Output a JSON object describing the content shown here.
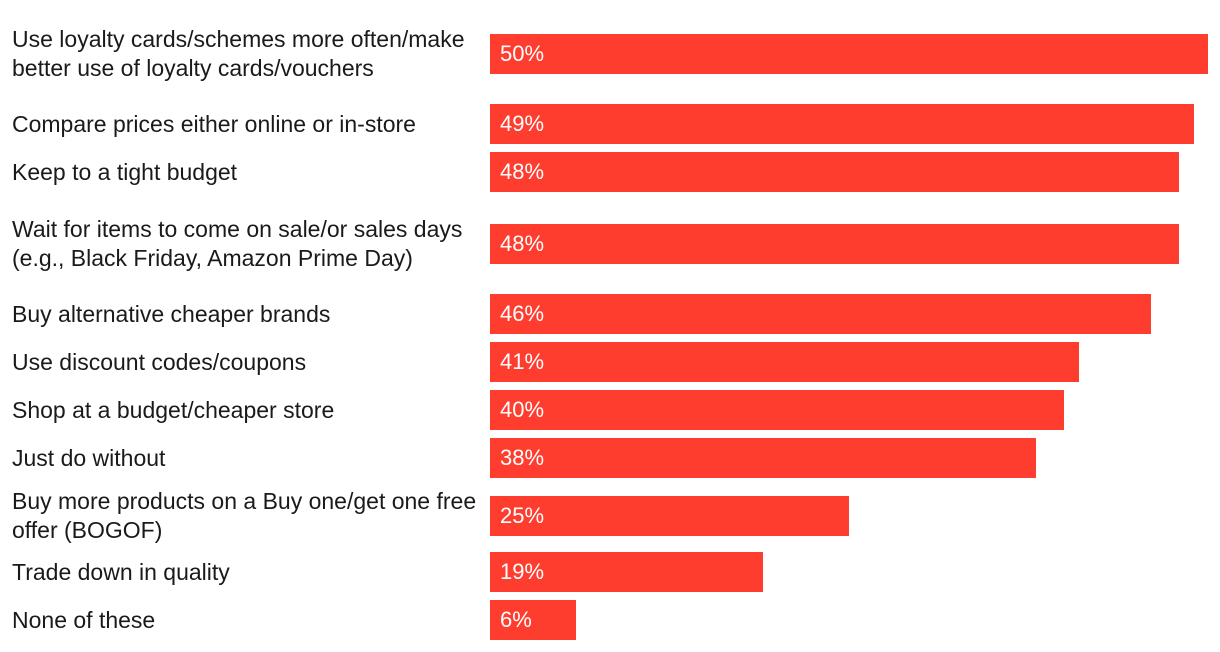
{
  "chart_data": {
    "type": "bar",
    "orientation": "horizontal",
    "title": "",
    "xlabel": "",
    "ylabel": "",
    "xlim": [
      0,
      50
    ],
    "grid": false,
    "legend": "none",
    "bar_color": "#ff3d2e",
    "value_label_color": "#ffffff",
    "categories": [
      "Use loyalty cards/schemes more often/make better use of loyalty cards/vouchers",
      "Compare prices either online or in-store",
      "Keep to a tight budget",
      "Wait for items to come on sale/or sales days (e.g., Black Friday, Amazon Prime Day)",
      "Buy alternative cheaper brands",
      "Use discount codes/coupons",
      "Shop at a budget/cheaper store",
      "Just do without",
      "Buy more products on a Buy one/get one free offer (BOGOF)",
      "Trade down in quality",
      "None of these"
    ],
    "values": [
      50,
      49,
      48,
      48,
      46,
      41,
      40,
      38,
      25,
      19,
      6
    ],
    "value_labels": [
      "50%",
      "49%",
      "48%",
      "48%",
      "46%",
      "41%",
      "40%",
      "38%",
      "25%",
      "19%",
      "6%"
    ]
  }
}
